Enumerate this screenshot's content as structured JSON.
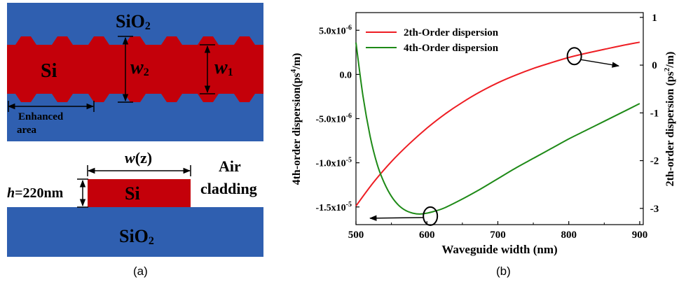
{
  "panel_a": {
    "top": {
      "top_label": "SiO",
      "top_label_sub": "2",
      "core_label": "Si",
      "w2_label": "w",
      "w2_sub": "2",
      "w1_label": "w",
      "w1_sub": "1",
      "enhanced_line1": "Enhanced",
      "enhanced_line2": "area"
    },
    "bottom": {
      "width_label_pre": "w",
      "width_label_post": "(z)",
      "height_label_pre": "h",
      "height_label_post": "=220nm",
      "core_label": "Si",
      "air_line1": "Air",
      "air_line2": "cladding",
      "substrate_label": "SiO",
      "substrate_sub": "2"
    },
    "caption": "(a)"
  },
  "panel_b_caption": "(b)",
  "colors": {
    "silica_blue": "#2f5fb0",
    "silicon_red": "#c4000a",
    "line_red": "#ee1d23",
    "line_green": "#1e8a17"
  },
  "chart_data": {
    "type": "line",
    "xlabel": "Waveguide width (nm)",
    "ylabel_left": "4th-order dispersion(ps^4/m)",
    "ylabel_right": "2th-order dispersion (ps^2/m)",
    "xlim": [
      500,
      905
    ],
    "ylim_left": [
      -1.7e-05,
      7e-06
    ],
    "ylim_right": [
      -3.34,
      1.1
    ],
    "x_ticks": [
      "500",
      "600",
      "700",
      "800",
      "900"
    ],
    "y_left_ticks": [
      {
        "value": 5e-06,
        "mant": "5.0x10",
        "exp": "-6"
      },
      {
        "value": 0,
        "mant": "0.0",
        "exp": ""
      },
      {
        "value": -5e-06,
        "mant": "-5.0x10",
        "exp": "-6"
      },
      {
        "value": -1e-05,
        "mant": "-1.0x10",
        "exp": "-5"
      },
      {
        "value": -1.5e-05,
        "mant": "-1.5x10",
        "exp": "-5"
      }
    ],
    "y_right_ticks": [
      "1",
      "0",
      "-1",
      "-2",
      "-3"
    ],
    "legend_position": "top-left",
    "series": [
      {
        "name": "2th-Order dispersion",
        "axis": "right",
        "color": "#ee1d23",
        "x": [
          500,
          525,
          550,
          575,
          600,
          625,
          650,
          675,
          700,
          725,
          750,
          775,
          800,
          825,
          850,
          875,
          900
        ],
        "y": [
          -2.95,
          -2.45,
          -2.02,
          -1.65,
          -1.32,
          -1.03,
          -0.78,
          -0.56,
          -0.37,
          -0.21,
          -0.07,
          0.05,
          0.16,
          0.25,
          0.33,
          0.41,
          0.48
        ]
      },
      {
        "name": "4th-Order dispersion",
        "axis": "left",
        "color": "#1e8a17",
        "x": [
          500,
          510,
          520,
          530,
          540,
          550,
          560,
          570,
          580,
          590,
          600,
          610,
          625,
          650,
          675,
          700,
          725,
          750,
          775,
          800,
          825,
          850,
          875,
          900
        ],
        "y": [
          3.6e-06,
          -2.5e-06,
          -7e-06,
          -1.02e-05,
          -1.23e-05,
          -1.38e-05,
          -1.48e-05,
          -1.54e-05,
          -1.57e-05,
          -1.58e-05,
          -1.57e-05,
          -1.55e-05,
          -1.51e-05,
          -1.41e-05,
          -1.3e-05,
          -1.18e-05,
          -1.06e-05,
          -9.5e-06,
          -8.4e-06,
          -7.3e-06,
          -6.3e-06,
          -5.3e-06,
          -4.3e-06,
          -3.3e-06
        ]
      }
    ],
    "annotations": [
      {
        "type": "ellipse-arrow",
        "target_series": "2th-Order dispersion",
        "near_x": 795,
        "points_to": "right-axis"
      },
      {
        "type": "ellipse-arrow",
        "target_series": "4th-Order dispersion",
        "near_x": 595,
        "points_to": "left-axis"
      }
    ]
  }
}
